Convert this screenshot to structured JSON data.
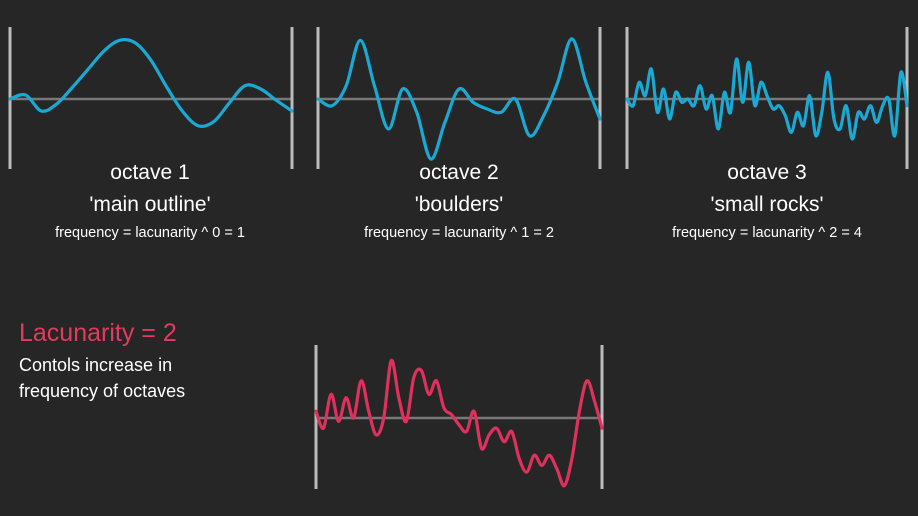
{
  "colors": {
    "background": "#262626",
    "wave": "#1aa9d2",
    "combined_wave": "#e0305c",
    "axis": "#787878",
    "border": "#bbbbbb",
    "text": "#ffffff",
    "accent": "#e53a5f"
  },
  "octaves": [
    {
      "title": "octave 1",
      "subtitle": "'main outline'",
      "formula": "frequency = lacunarity ^ 0 = 1",
      "frequency": 1,
      "amplitudes": [
        0.0,
        0.06,
        -0.18,
        -0.07,
        0.18,
        0.45,
        0.72,
        0.88,
        0.84,
        0.58,
        0.18,
        -0.18,
        -0.4,
        -0.34,
        -0.06,
        0.2,
        0.15,
        -0.02,
        -0.18
      ]
    },
    {
      "title": "octave 2",
      "subtitle": "'boulders'",
      "formula": "frequency = lacunarity ^ 1 = 2",
      "frequency": 2,
      "amplitudes": [
        0.0,
        -0.1,
        0.2,
        0.88,
        0.2,
        -0.45,
        0.15,
        -0.2,
        -0.9,
        -0.35,
        0.15,
        -0.05,
        -0.15,
        -0.2,
        0.0,
        -0.55,
        -0.25,
        0.25,
        0.9,
        0.25,
        -0.3
      ]
    },
    {
      "title": "octave 3",
      "subtitle": "'small rocks'",
      "formula": "frequency = lacunarity ^ 2 = 4",
      "frequency": 4,
      "amplitudes": [
        0.0,
        -0.1,
        0.25,
        0.05,
        0.45,
        -0.2,
        0.15,
        -0.3,
        0.1,
        -0.05,
        0.0,
        -0.1,
        0.2,
        -0.15,
        0.05,
        -0.45,
        0.1,
        -0.2,
        0.6,
        -0.05,
        0.55,
        -0.1,
        0.25,
        0.05,
        -0.15,
        -0.1,
        -0.25,
        -0.5,
        -0.2,
        -0.4,
        0.05,
        -0.55,
        -0.2,
        0.4,
        -0.3,
        -0.45,
        -0.1,
        -0.6,
        -0.2,
        -0.3,
        -0.1,
        -0.35,
        -0.1,
        0.0,
        -0.55,
        0.4,
        -0.1
      ]
    }
  ],
  "combined": {
    "amplitudes": [
      0.1,
      -0.15,
      0.35,
      -0.05,
      0.3,
      0.0,
      0.55,
      0.1,
      -0.25,
      0.0,
      0.85,
      0.3,
      -0.05,
      0.6,
      0.7,
      0.35,
      0.55,
      0.15,
      0.05,
      -0.1,
      -0.2,
      0.1,
      -0.45,
      -0.25,
      -0.15,
      -0.35,
      -0.2,
      -0.6,
      -0.8,
      -0.55,
      -0.7,
      -0.55,
      -0.75,
      -1.0,
      -0.6,
      0.1,
      0.55,
      0.25,
      -0.15
    ]
  },
  "lacunarity": {
    "heading": "Lacunarity = 2",
    "description_line1": "Contols increase in",
    "description_line2": "frequency of octaves"
  }
}
